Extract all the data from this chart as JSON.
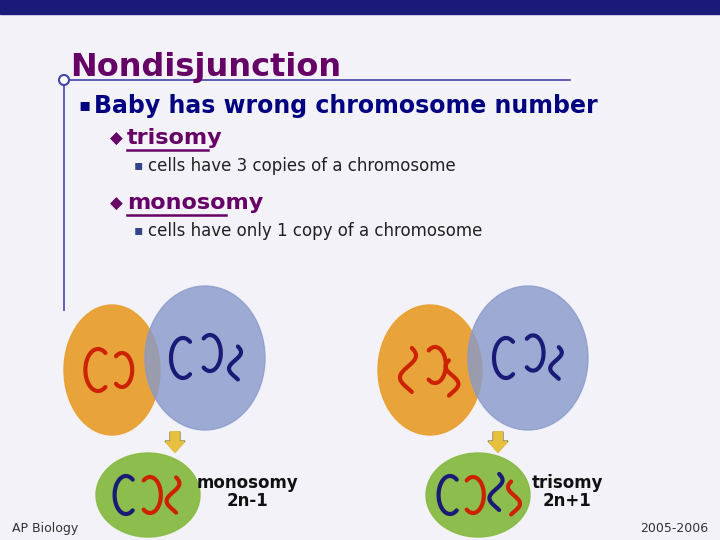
{
  "bg_color": "#f2f2f8",
  "top_bar_color": "#1a1a7a",
  "title": "Nondisjunction",
  "title_color": "#660066",
  "bullet1": "Baby has wrong chromosome number",
  "bullet1_color": "#000080",
  "sub1_label": "trisomy",
  "sub1_color": "#660066",
  "sub1_text": "cells have 3 copies of a chromosome",
  "sub2_label": "monosomy",
  "sub2_color": "#660066",
  "sub2_text": "cells have only 1 copy of a chromosome",
  "label_monosomy": "monosomy",
  "label_monosomy2": "2n-1",
  "label_trisomy": "trisomy",
  "label_trisomy2": "2n+1",
  "label_ap": "AP Biology",
  "label_year": "2005-2006",
  "orange_color": "#e8a030",
  "blue_color": "#8899cc",
  "green_color": "#88bb44",
  "red_chrom": "#cc2200",
  "dark_blue_chrom": "#1a1a77",
  "line_color": "#4444aa",
  "arrow_color": "#e8c040",
  "bullet_color": "#334488"
}
